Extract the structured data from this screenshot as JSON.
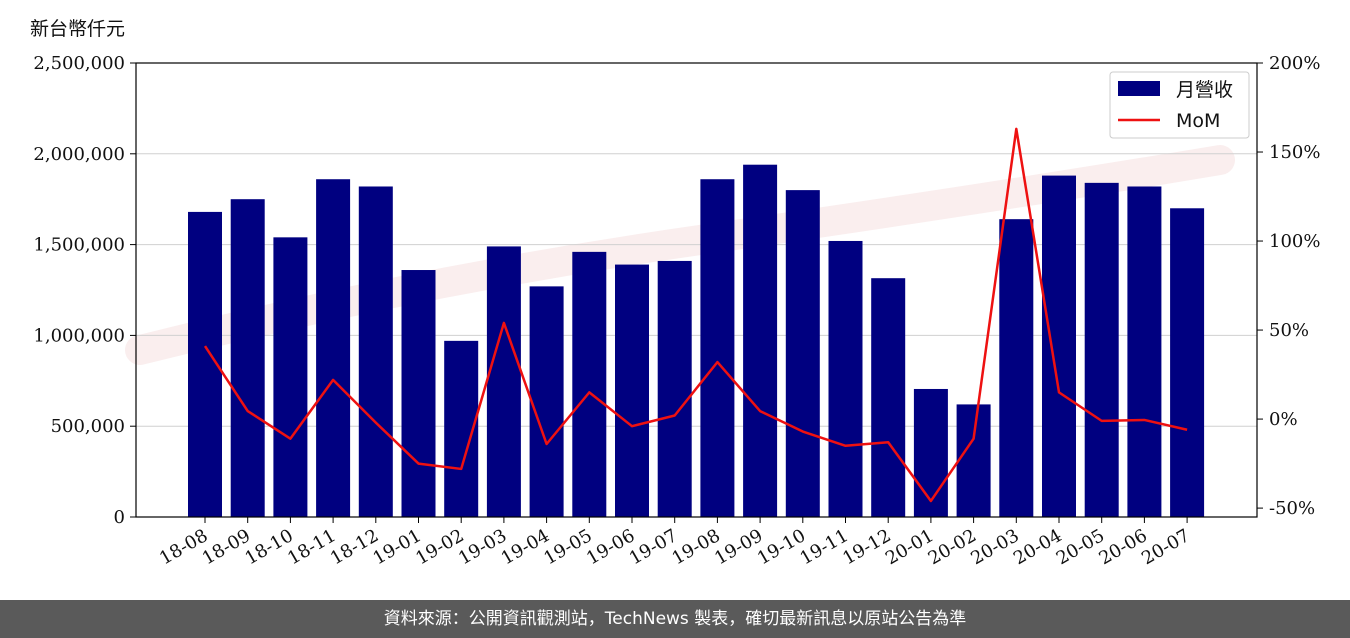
{
  "unit_label": "新台幣仟元",
  "footer_text": "資料來源：公開資訊觀測站，TechNews 製表，確切最新訊息以原站公告為準",
  "chart_data": {
    "type": "bar",
    "title": "",
    "xlabel": "",
    "ylabel": "新台幣仟元",
    "categories": [
      "18-08",
      "18-09",
      "18-10",
      "18-11",
      "18-12",
      "19-01",
      "19-02",
      "19-03",
      "19-04",
      "19-05",
      "19-06",
      "19-07",
      "19-08",
      "19-09",
      "19-10",
      "19-11",
      "19-12",
      "20-01",
      "20-02",
      "20-03",
      "20-04",
      "20-05",
      "20-06",
      "20-07"
    ],
    "series": [
      {
        "name": "月營收",
        "type": "bar",
        "axis": "left",
        "color": "#000080",
        "values": [
          1680000,
          1750000,
          1540000,
          1860000,
          1820000,
          1360000,
          970000,
          1490000,
          1270000,
          1460000,
          1390000,
          1410000,
          1860000,
          1940000,
          1800000,
          1520000,
          1315000,
          705000,
          620000,
          1640000,
          1880000,
          1840000,
          1820000,
          1700000
        ]
      },
      {
        "name": "MoM",
        "type": "line",
        "axis": "right",
        "color": "#ee1111",
        "values": [
          41,
          4.5,
          -11,
          22,
          -2,
          -25,
          -28,
          54,
          -14,
          15,
          -4,
          2,
          32,
          4.5,
          -7,
          -15,
          -13,
          -46,
          -11,
          163,
          15,
          -1,
          -0.5,
          -6
        ]
      }
    ],
    "ylim": [
      0,
      2500000
    ],
    "y_ticks": [
      0,
      500000,
      1000000,
      1500000,
      2000000,
      2500000
    ],
    "y_tick_labels": [
      "0",
      "500,000",
      "1,000,000",
      "1,500,000",
      "2,000,000",
      "2,500,000"
    ],
    "y2lim": [
      -55,
      200
    ],
    "y2_ticks": [
      -50,
      0,
      50,
      100,
      150,
      200
    ],
    "y2_tick_labels": [
      "-50%",
      "0%",
      "50%",
      "100%",
      "150%",
      "200%"
    ],
    "grid": true,
    "legend": "top-right"
  }
}
